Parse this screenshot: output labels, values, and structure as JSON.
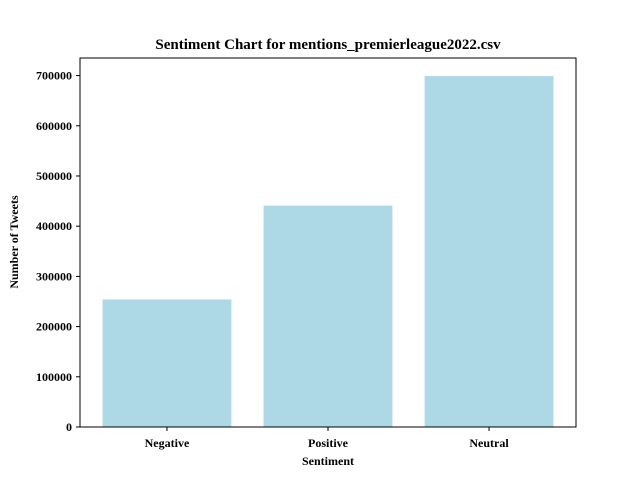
{
  "chart_data": {
    "type": "bar",
    "title": "Sentiment Chart for mentions_premierleague2022.csv",
    "xlabel": "Sentiment",
    "ylabel": "Number of Tweets",
    "categories": [
      "Negative",
      "Positive",
      "Neutral"
    ],
    "values": [
      254000,
      441000,
      699000
    ],
    "ylim": [
      0,
      735000
    ],
    "yticks": [
      0,
      100000,
      200000,
      300000,
      400000,
      500000,
      600000,
      700000
    ],
    "bar_color": "#add8e6",
    "grid": false,
    "legend": "none"
  }
}
